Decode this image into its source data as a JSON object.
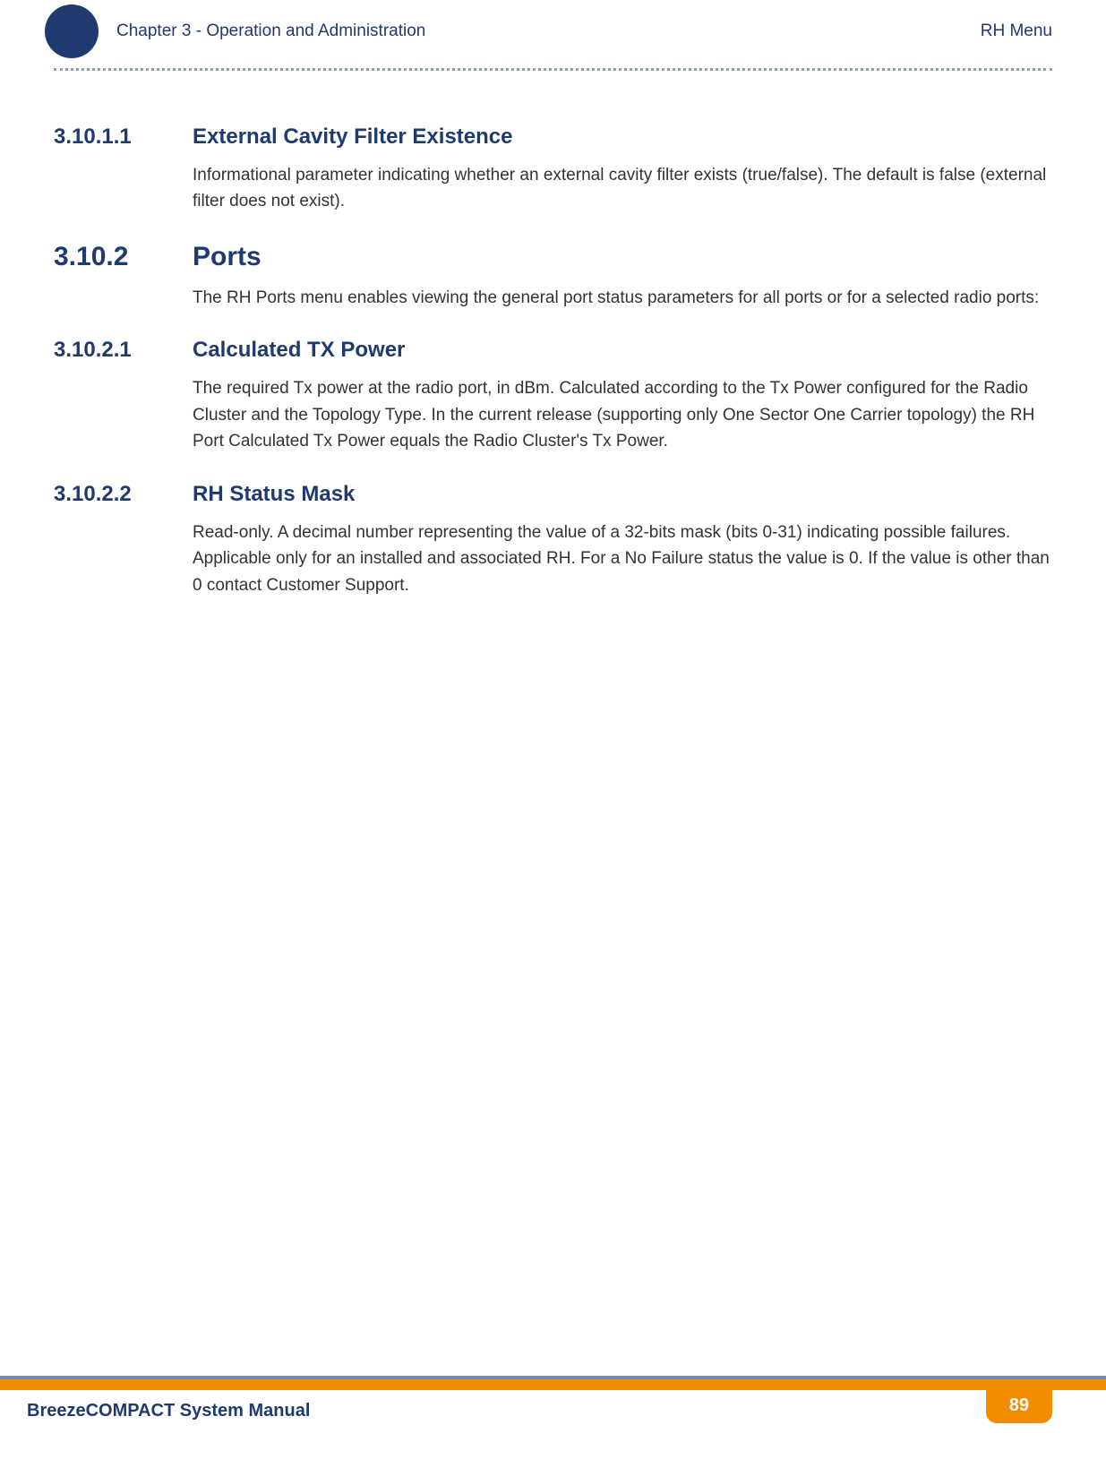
{
  "header": {
    "chapter_label": "Chapter 3 - Operation and Administration",
    "menu_label": "RH Menu"
  },
  "sections": [
    {
      "num": "3.10.1.1",
      "level": "h3",
      "title": "External Cavity Filter Existence",
      "paragraphs": [
        "Informational parameter indicating whether an external cavity filter exists (true/false). The default is false (external filter does not exist)."
      ]
    },
    {
      "num": "3.10.2",
      "level": "h2",
      "title": "Ports",
      "paragraphs": [
        "The RH Ports menu enables viewing the general port status parameters for all ports or for a selected radio ports:"
      ]
    },
    {
      "num": "3.10.2.1",
      "level": "h3",
      "title": "Calculated TX Power",
      "paragraphs": [
        "The required Tx power at the radio port, in dBm. Calculated according to the Tx Power configured for the Radio Cluster and the Topology Type. In the current release (supporting only One Sector One Carrier topology) the RH Port Calculated Tx Power equals the Radio Cluster's Tx Power."
      ]
    },
    {
      "num": "3.10.2.2",
      "level": "h3",
      "title": "RH Status Mask",
      "paragraphs": [
        "Read-only. A decimal number representing the value of a 32-bits mask (bits 0-31) indicating possible failures. Applicable only for an installed and associated RH. For a No Failure status the value is 0. If the value is other than 0 contact Customer Support."
      ]
    }
  ],
  "footer": {
    "manual_title": "BreezeCOMPACT System Manual",
    "page_number": "89"
  },
  "colors": {
    "brand_blue": "#1f3a6e",
    "brand_orange": "#f28c00",
    "dotted_border": "#8aa0c0",
    "thin_bar": "#7a8aa8",
    "body_text": "#333333",
    "background": "#ffffff"
  }
}
